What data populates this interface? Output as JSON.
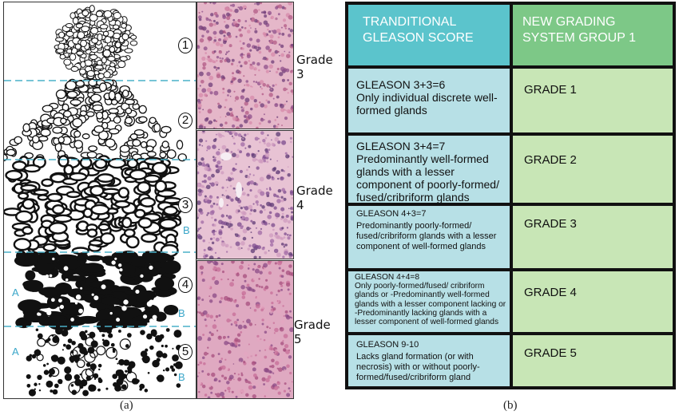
{
  "panel_a": {
    "caption": "(a)",
    "pattern_numbers": [
      "1",
      "2",
      "3",
      "4",
      "5"
    ],
    "zone_letters": [
      "B",
      "A",
      "B",
      "A",
      "B"
    ],
    "grade_labels": [
      "Grade 3",
      "Grade 4",
      "Grade 5"
    ],
    "colors": {
      "dash": "#4ab0c8",
      "letters": "#3aa6c9",
      "ink": "#111111"
    }
  },
  "panel_b": {
    "caption": "(b)",
    "header": {
      "left": "TRANDITIONAL GLEASON SCORE",
      "right": "NEW GRADING SYSTEM GROUP 1"
    },
    "rows": [
      {
        "score": "GLEASON 3+3=6",
        "description": "Only individual discrete well-formed glands",
        "grade": "GRADE 1"
      },
      {
        "score": "GLEASON 3+4=7",
        "description": "Predominantly well-formed glands with a lesser component of poorly-formed/ fused/cribriform glands",
        "grade": "GRADE 2"
      },
      {
        "score": "GLEASON 4+3=7",
        "description": "Predominantly poorly-formed/ fused/cribriform glands with a lesser component of well-formed glands",
        "grade": "GRADE 3"
      },
      {
        "score": "GLEASON 4+4=8",
        "description": "Only poorly-formed/fused/ cribriform glands or -Predominantly well-formed glands with a lesser component lacking or -Predominantly lacking glands with a lesser component of well-formed glands",
        "grade": "GRADE 4"
      },
      {
        "score": "GLEASON 9-10",
        "description": "Lacks gland formation (or with necrosis) with or without poorly-formed/fused/cribriform gland",
        "grade": "GRADE 5"
      }
    ],
    "colors": {
      "header_left": "#5bc4cc",
      "header_right": "#7dc887",
      "cell_left": "#b7e0e6",
      "cell_right": "#c8e6b6",
      "grid": "#111111"
    }
  }
}
